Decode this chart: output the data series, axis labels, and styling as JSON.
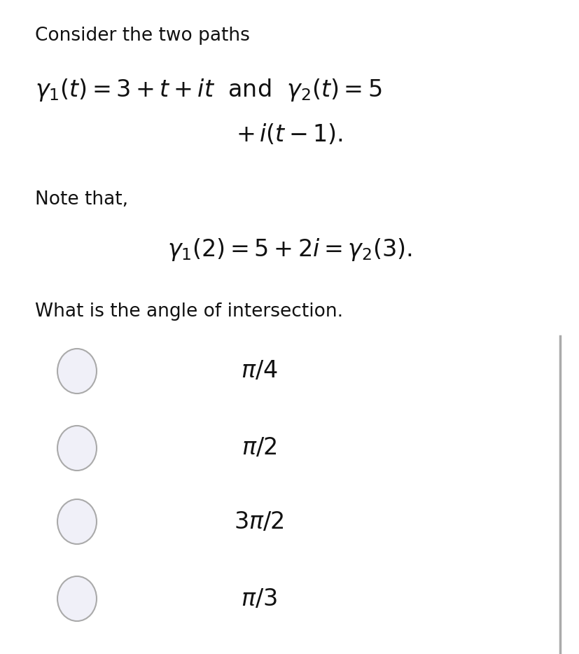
{
  "background_color": "#ffffff",
  "text_color": "#111111",
  "circle_edge_color": "#aaaaaa",
  "circle_face_color": "#f0f0f8",
  "title_text": "Consider the two paths",
  "note_text": "Note that,",
  "question_text": "What is the angle of intersection.",
  "options": [
    "$\\pi/4$",
    "$\\pi/2$",
    "$3\\pi/2$",
    "$\\pi/3$"
  ],
  "right_bar_color": "#aaaaaa",
  "title_fontsize": 19,
  "math_fontsize": 24,
  "option_fontsize": 24,
  "note_fontsize": 19,
  "question_fontsize": 19
}
